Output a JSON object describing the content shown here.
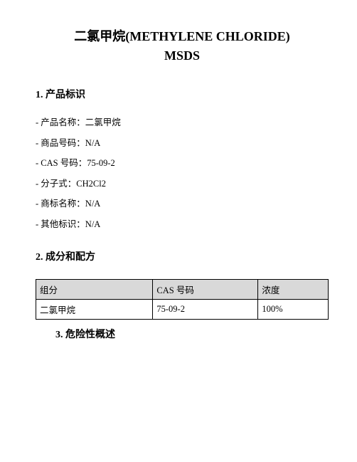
{
  "title_line1": "二氯甲烷(METHYLENE CHLORIDE)",
  "title_line2": "MSDS",
  "section1": {
    "heading": "1. 产品标识",
    "fields": [
      "- 产品名称：二氯甲烷",
      "- 商品号码：N/A",
      "- CAS 号码：75-09-2",
      "- 分子式：CH2Cl2",
      "- 商标名称：N/A",
      "- 其他标识：N/A"
    ]
  },
  "section2": {
    "heading": "2. 成分和配方",
    "table": {
      "headers": [
        "组分",
        "CAS 号码",
        "浓度"
      ],
      "row": [
        "二氯甲烷",
        "75-09-2",
        "100%"
      ]
    }
  },
  "section3": {
    "heading": "3. 危险性概述"
  },
  "colors": {
    "text": "#000000",
    "background": "#ffffff",
    "table_header_bg": "#d9d9d9",
    "table_border": "#000000"
  },
  "typography": {
    "title_fontsize": 18,
    "heading_fontsize": 14,
    "body_fontsize": 12.5,
    "font_family": "SimSun / Times New Roman serif"
  }
}
